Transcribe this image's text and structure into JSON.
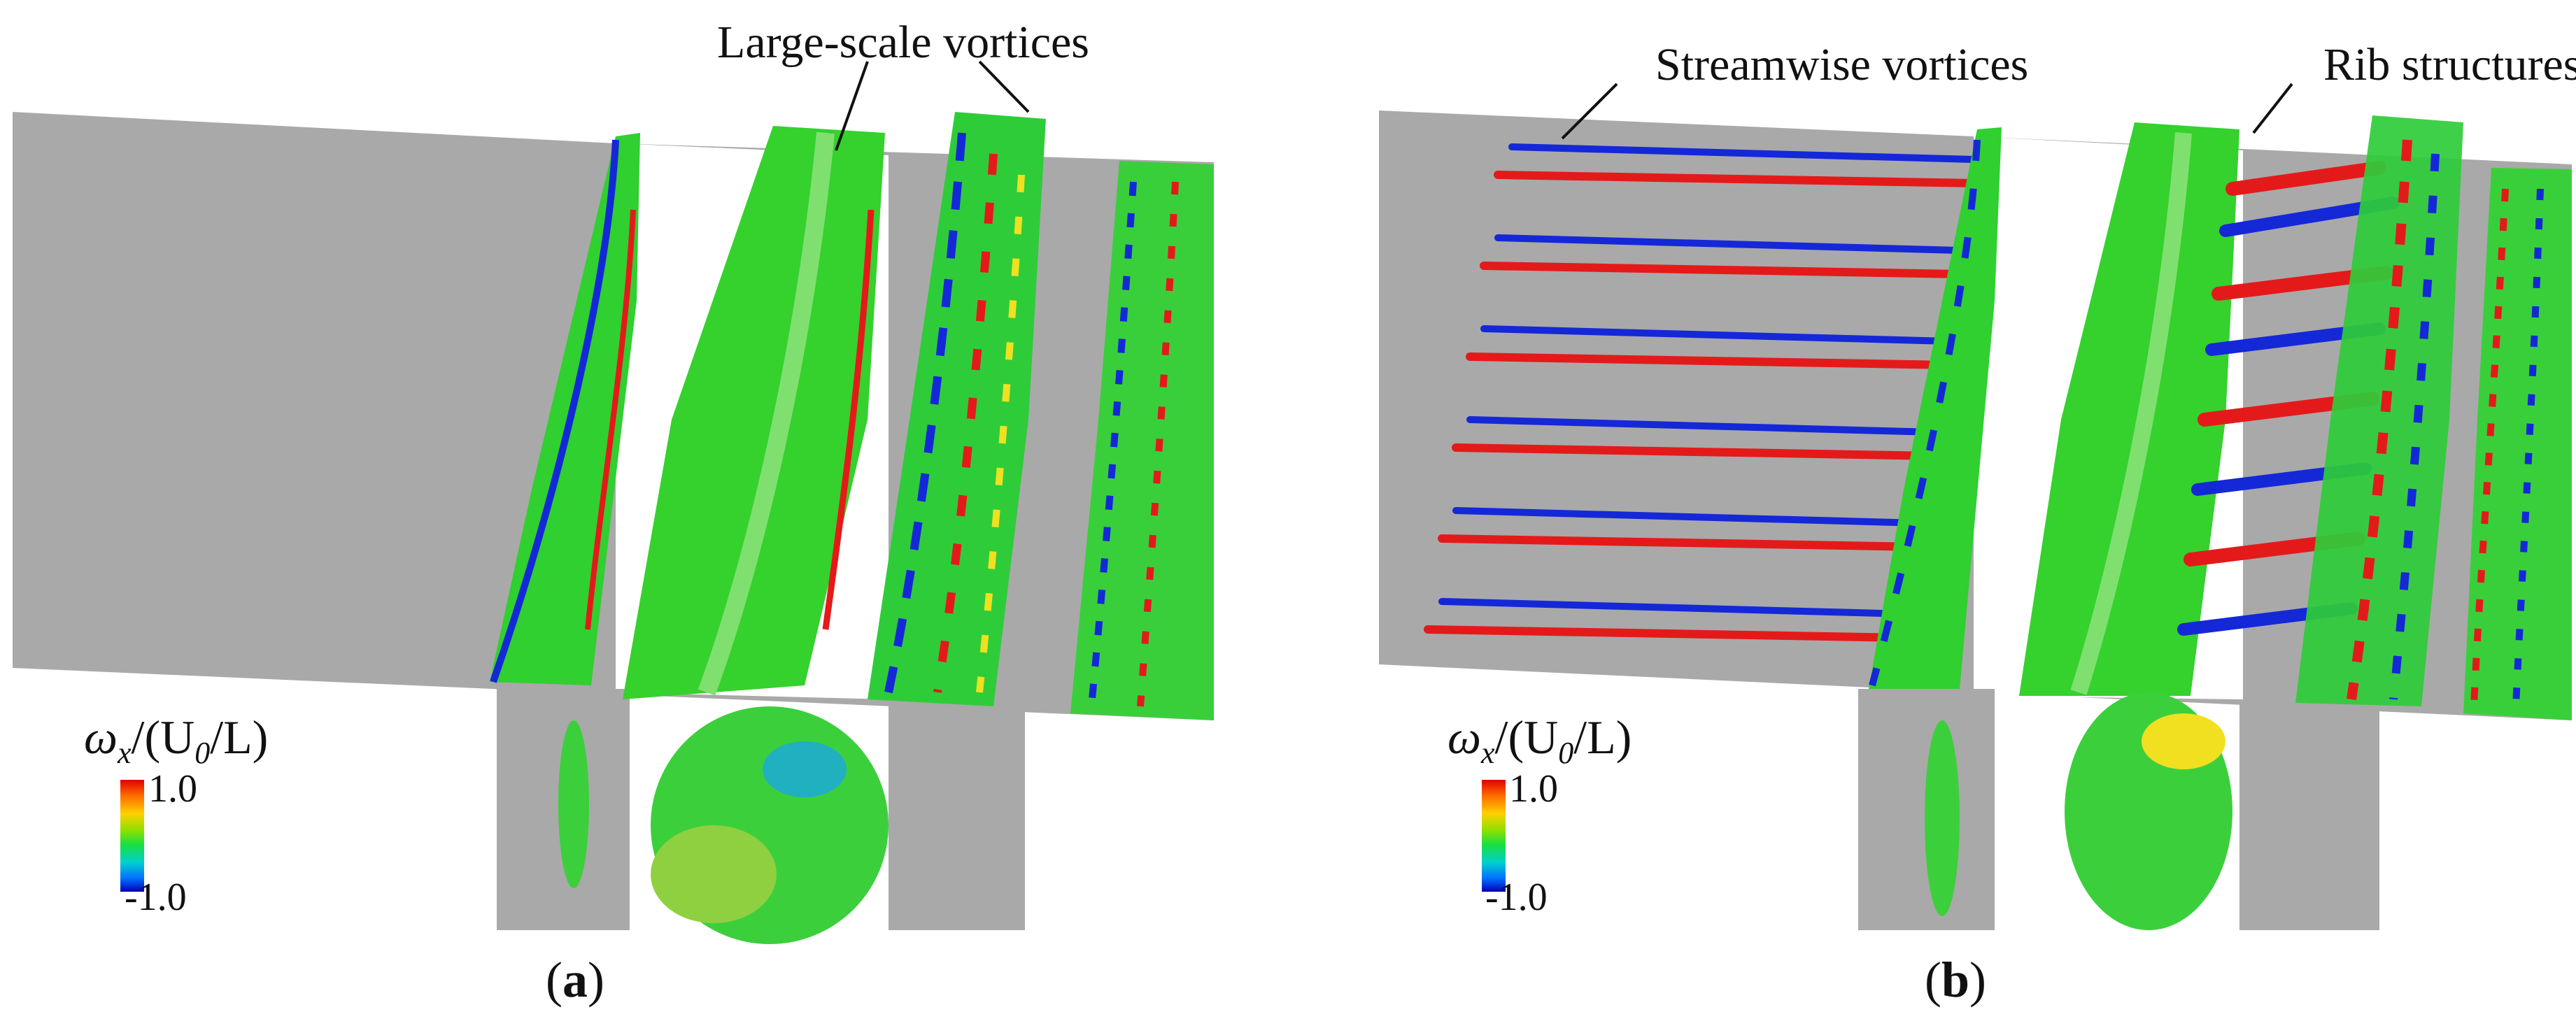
{
  "figure": {
    "panels": [
      {
        "id": "a",
        "label_open": "(",
        "label_letter": "a",
        "label_close": ")",
        "annotations": [
          "Large-scale vortices"
        ]
      },
      {
        "id": "b",
        "label_open": "(",
        "label_letter": "b",
        "label_close": ")",
        "annotations": [
          "Streamwise vortices",
          "Rib structures"
        ]
      }
    ],
    "colorbar": {
      "symbol": "ω",
      "symbol_sub": "x",
      "denominator": "/(U",
      "denominator_sub": "0",
      "denominator_end": "/L)",
      "max_label": "1.0",
      "min_label": "-1.0",
      "colors": [
        "#e00000",
        "#ff6a00",
        "#ffd000",
        "#8fe000",
        "#18e040",
        "#00d0d0",
        "#0070ff",
        "#0000b8"
      ]
    },
    "surface_colors": {
      "wall": "#a9a9a9",
      "vortex_core": "#2fd02f",
      "positive": "#e41a1a",
      "negative": "#1428d8",
      "mid": "#f0e020"
    }
  }
}
